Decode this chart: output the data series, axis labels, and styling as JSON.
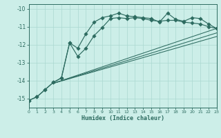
{
  "background_color": "#cceee8",
  "grid_color": "#aad8d0",
  "line_color": "#2d6b60",
  "xlabel": "Humidex (Indice chaleur)",
  "xlim": [
    0,
    23
  ],
  "ylim": [
    -15.5,
    -9.75
  ],
  "yticks": [
    -15,
    -14,
    -13,
    -12,
    -11,
    -10
  ],
  "xticks": [
    0,
    1,
    2,
    3,
    4,
    5,
    6,
    7,
    8,
    9,
    10,
    11,
    12,
    13,
    14,
    15,
    16,
    17,
    18,
    19,
    20,
    21,
    22,
    23
  ],
  "curve1_x": [
    0,
    1,
    2,
    3,
    4,
    5,
    6,
    7,
    8,
    9,
    10,
    11,
    12,
    13,
    14,
    15,
    16,
    17,
    18,
    19,
    20,
    21,
    22,
    23
  ],
  "curve1_y": [
    -15.1,
    -14.9,
    -14.5,
    -14.1,
    -13.85,
    -11.9,
    -12.2,
    -11.4,
    -10.75,
    -10.5,
    -10.4,
    -10.25,
    -10.4,
    -10.45,
    -10.5,
    -10.55,
    -10.75,
    -10.25,
    -10.6,
    -10.7,
    -10.5,
    -10.55,
    -10.85,
    -11.1
  ],
  "curve2_x": [
    0,
    1,
    2,
    3,
    4,
    5,
    6,
    7,
    8,
    9,
    10,
    11,
    12,
    13,
    14,
    15,
    16,
    17,
    18,
    19,
    20,
    21,
    22,
    23
  ],
  "curve2_y": [
    -15.1,
    -14.9,
    -14.5,
    -14.1,
    -13.85,
    -11.9,
    -12.65,
    -12.2,
    -11.5,
    -11.05,
    -10.55,
    -10.5,
    -10.55,
    -10.5,
    -10.55,
    -10.65,
    -10.7,
    -10.65,
    -10.65,
    -10.75,
    -10.8,
    -10.85,
    -11.0,
    -11.1
  ],
  "straight_x0": 3,
  "straight_y0": -14.15,
  "straight_x1": 23,
  "straight1_y1": -11.1,
  "straight2_y1": -11.35,
  "straight3_y1": -11.55,
  "marker_size": 2.8,
  "lw_curve": 0.85,
  "lw_straight": 0.75
}
